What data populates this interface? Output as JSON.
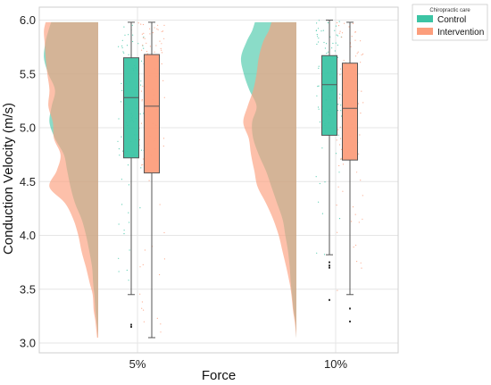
{
  "chart_data": {
    "type": "raincloud",
    "xlabel": "Force",
    "ylabel": "Conduction Velocity (m/s)",
    "categories": [
      "5%",
      "10%"
    ],
    "ylim": [
      2.92,
      6.02
    ],
    "yticks": [
      "3.0",
      "3.5",
      "4.0",
      "4.5",
      "5.0",
      "5.5",
      "6.0"
    ],
    "grid": true,
    "legend": {
      "title": "Chiropractic care",
      "placement": "outside-top-right",
      "entries": [
        "Control",
        "Intervention"
      ]
    },
    "series": [
      {
        "name": "Control",
        "color": "#3cc4a4",
        "box": [
          {
            "category": "5%",
            "whisker_low": 3.45,
            "q1": 4.72,
            "median": 5.28,
            "q3": 5.65,
            "whisker_high": 5.98,
            "outliers": [
              3.15,
              3.17
            ]
          },
          {
            "category": "10%",
            "whisker_low": 3.82,
            "q1": 4.93,
            "median": 5.4,
            "q3": 5.67,
            "whisker_high": 6.0,
            "outliers": [
              3.7,
              3.72,
              3.75,
              3.4
            ]
          }
        ]
      },
      {
        "name": "Intervention",
        "color": "#fc9e7c",
        "box": [
          {
            "category": "5%",
            "whisker_low": 3.05,
            "q1": 4.58,
            "median": 5.2,
            "q3": 5.68,
            "whisker_high": 5.98,
            "outliers": []
          },
          {
            "category": "10%",
            "whisker_low": 3.45,
            "q1": 4.7,
            "median": 5.18,
            "q3": 5.6,
            "whisker_high": 5.98,
            "outliers": [
              3.2,
              3.32
            ]
          }
        ]
      }
    ],
    "density": {
      "y": [
        3.05,
        3.2,
        3.3,
        3.45,
        3.55,
        3.7,
        3.85,
        4.0,
        4.15,
        4.3,
        4.45,
        4.6,
        4.75,
        4.9,
        5.05,
        5.2,
        5.35,
        5.5,
        5.65,
        5.8,
        5.9,
        5.98
      ],
      "Control": {
        "5%": [
          0.0,
          0.03,
          0.05,
          0.07,
          0.09,
          0.11,
          0.16,
          0.22,
          0.3,
          0.42,
          0.5,
          0.56,
          0.62,
          0.78,
          0.88,
          0.84,
          0.78,
          0.9,
          0.98,
          0.95,
          0.9,
          0.85
        ],
        "10%": [
          0.0,
          0.02,
          0.05,
          0.08,
          0.1,
          0.12,
          0.15,
          0.2,
          0.25,
          0.35,
          0.45,
          0.55,
          0.68,
          0.78,
          0.8,
          0.72,
          0.85,
          0.95,
          1.0,
          0.9,
          0.8,
          0.75
        ]
      },
      "Intervention": {
        "5%": [
          0.02,
          0.05,
          0.08,
          0.1,
          0.15,
          0.22,
          0.3,
          0.36,
          0.45,
          0.6,
          0.88,
          0.75,
          0.68,
          0.8,
          0.82,
          0.9,
          0.88,
          0.92,
          0.95,
          0.97,
          0.98,
          0.95
        ],
        "10%": [
          0.0,
          0.03,
          0.06,
          0.09,
          0.12,
          0.18,
          0.25,
          0.32,
          0.42,
          0.55,
          0.7,
          0.76,
          0.82,
          0.86,
          0.96,
          0.88,
          0.78,
          0.72,
          0.68,
          0.6,
          0.5,
          0.45
        ]
      }
    }
  }
}
